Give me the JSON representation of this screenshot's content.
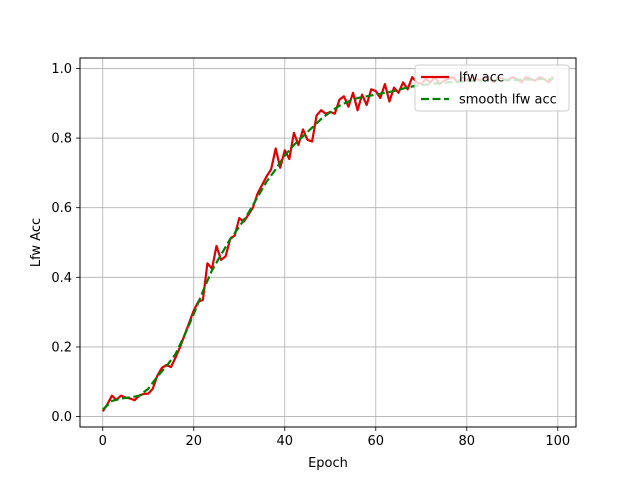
{
  "chart_data": {
    "type": "line",
    "title": "",
    "xlabel": "Epoch",
    "ylabel": "Lfw Acc",
    "xlim": [
      -5,
      104
    ],
    "ylim": [
      -0.03,
      1.03
    ],
    "xticks": [
      0,
      20,
      40,
      60,
      80,
      100
    ],
    "xtick_labels": [
      "0",
      "20",
      "40",
      "60",
      "80",
      "100"
    ],
    "yticks": [
      0.0,
      0.2,
      0.4,
      0.6,
      0.8,
      1.0
    ],
    "ytick_labels": [
      "0.0",
      "0.2",
      "0.4",
      "0.6",
      "0.8",
      "1.0"
    ],
    "grid": true,
    "legend_position": "top-right",
    "series": [
      {
        "name": "lfw acc",
        "color": "#e00000",
        "style": "solid",
        "x": [
          0,
          1,
          2,
          3,
          4,
          5,
          6,
          7,
          8,
          9,
          10,
          11,
          12,
          13,
          14,
          15,
          16,
          17,
          18,
          19,
          20,
          21,
          22,
          23,
          24,
          25,
          26,
          27,
          28,
          29,
          30,
          31,
          32,
          33,
          34,
          35,
          36,
          37,
          38,
          39,
          40,
          41,
          42,
          43,
          44,
          45,
          46,
          47,
          48,
          49,
          50,
          51,
          52,
          53,
          54,
          55,
          56,
          57,
          58,
          59,
          60,
          61,
          62,
          63,
          64,
          65,
          66,
          67,
          68,
          69,
          70,
          71,
          72,
          73,
          74,
          75,
          76,
          77,
          78,
          79,
          80,
          81,
          82,
          83,
          84,
          85,
          86,
          87,
          88,
          89,
          90,
          91,
          92,
          93,
          94,
          95,
          96,
          97,
          98,
          99
        ],
        "values": [
          0.015,
          0.035,
          0.06,
          0.048,
          0.06,
          0.055,
          0.052,
          0.047,
          0.06,
          0.065,
          0.066,
          0.08,
          0.118,
          0.14,
          0.148,
          0.142,
          0.17,
          0.2,
          0.235,
          0.27,
          0.305,
          0.33,
          0.335,
          0.44,
          0.425,
          0.49,
          0.45,
          0.46,
          0.51,
          0.52,
          0.57,
          0.56,
          0.58,
          0.6,
          0.64,
          0.665,
          0.69,
          0.71,
          0.77,
          0.715,
          0.765,
          0.74,
          0.815,
          0.78,
          0.825,
          0.795,
          0.79,
          0.865,
          0.88,
          0.87,
          0.875,
          0.87,
          0.91,
          0.92,
          0.89,
          0.93,
          0.88,
          0.925,
          0.895,
          0.94,
          0.935,
          0.915,
          0.955,
          0.905,
          0.945,
          0.93,
          0.96,
          0.94,
          0.975,
          0.96,
          0.955,
          0.97,
          0.96,
          0.975,
          0.955,
          0.965,
          0.97,
          0.975,
          0.96,
          0.975,
          0.965,
          0.975,
          0.97,
          0.965,
          0.975,
          0.97,
          0.96,
          0.975,
          0.97,
          0.965,
          0.975,
          0.97,
          0.96,
          0.975,
          0.97,
          0.965,
          0.975,
          0.97,
          0.96,
          0.975
        ]
      },
      {
        "name": "smooth lfw acc",
        "color": "#008000",
        "style": "dashed",
        "x": [
          0,
          2,
          4,
          6,
          8,
          10,
          12,
          14,
          16,
          18,
          20,
          22,
          24,
          26,
          28,
          30,
          32,
          34,
          36,
          38,
          40,
          42,
          44,
          46,
          48,
          50,
          52,
          54,
          56,
          58,
          60,
          62,
          64,
          66,
          68,
          70,
          72,
          74,
          76,
          78,
          80,
          82,
          84,
          86,
          88,
          90,
          92,
          94,
          96,
          98,
          99
        ],
        "values": [
          0.02,
          0.045,
          0.052,
          0.055,
          0.06,
          0.08,
          0.115,
          0.145,
          0.18,
          0.235,
          0.295,
          0.36,
          0.42,
          0.465,
          0.51,
          0.545,
          0.585,
          0.63,
          0.675,
          0.71,
          0.75,
          0.78,
          0.805,
          0.83,
          0.855,
          0.875,
          0.893,
          0.905,
          0.915,
          0.92,
          0.925,
          0.93,
          0.935,
          0.942,
          0.948,
          0.952,
          0.955,
          0.958,
          0.96,
          0.962,
          0.963,
          0.964,
          0.965,
          0.966,
          0.967,
          0.967,
          0.968,
          0.968,
          0.969,
          0.969,
          0.97
        ]
      }
    ]
  }
}
